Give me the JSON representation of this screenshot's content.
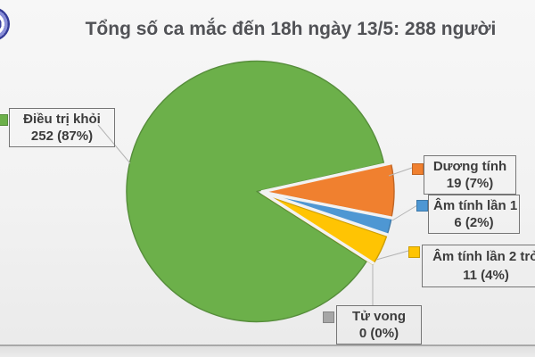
{
  "chart_data": {
    "type": "pie",
    "title": "Tổng số ca mắc đến 18h ngày 13/5: 288 người",
    "categories": [
      "Điều trị khỏi",
      "Dương tính",
      "Âm tính lần 1",
      "Âm tính lần 2 trở",
      "Tử vong"
    ],
    "values": [
      252,
      19,
      6,
      11,
      0
    ],
    "total": 288,
    "percent_labels": [
      "87%",
      "7%",
      "2%",
      "4%",
      "0%"
    ],
    "colors": [
      "#6cb04a",
      "#f0802f",
      "#4e97d3",
      "#ffc403",
      "#a6a6a6"
    ],
    "legend_position": "callouts",
    "exploded_slices": [
      "Dương tính",
      "Âm tính lần 1",
      "Âm tính lần 2 trở"
    ]
  },
  "legend": {
    "items": [
      {
        "label": "Điều trị khỏi",
        "value_text": "252 (87%)",
        "color": "#6cb04a"
      },
      {
        "label": "Dương tính",
        "value_text": "19 (7%)",
        "color": "#f0802f"
      },
      {
        "label": "Âm tính lần 1",
        "value_text": "6 (2%)",
        "color": "#4e97d3"
      },
      {
        "label": "Âm tính lần 2 trở",
        "value_text": "11 (4%)",
        "color": "#ffc403"
      },
      {
        "label": "Tử vong",
        "value_text": "0 (0%)",
        "color": "#a6a6a6"
      }
    ]
  }
}
